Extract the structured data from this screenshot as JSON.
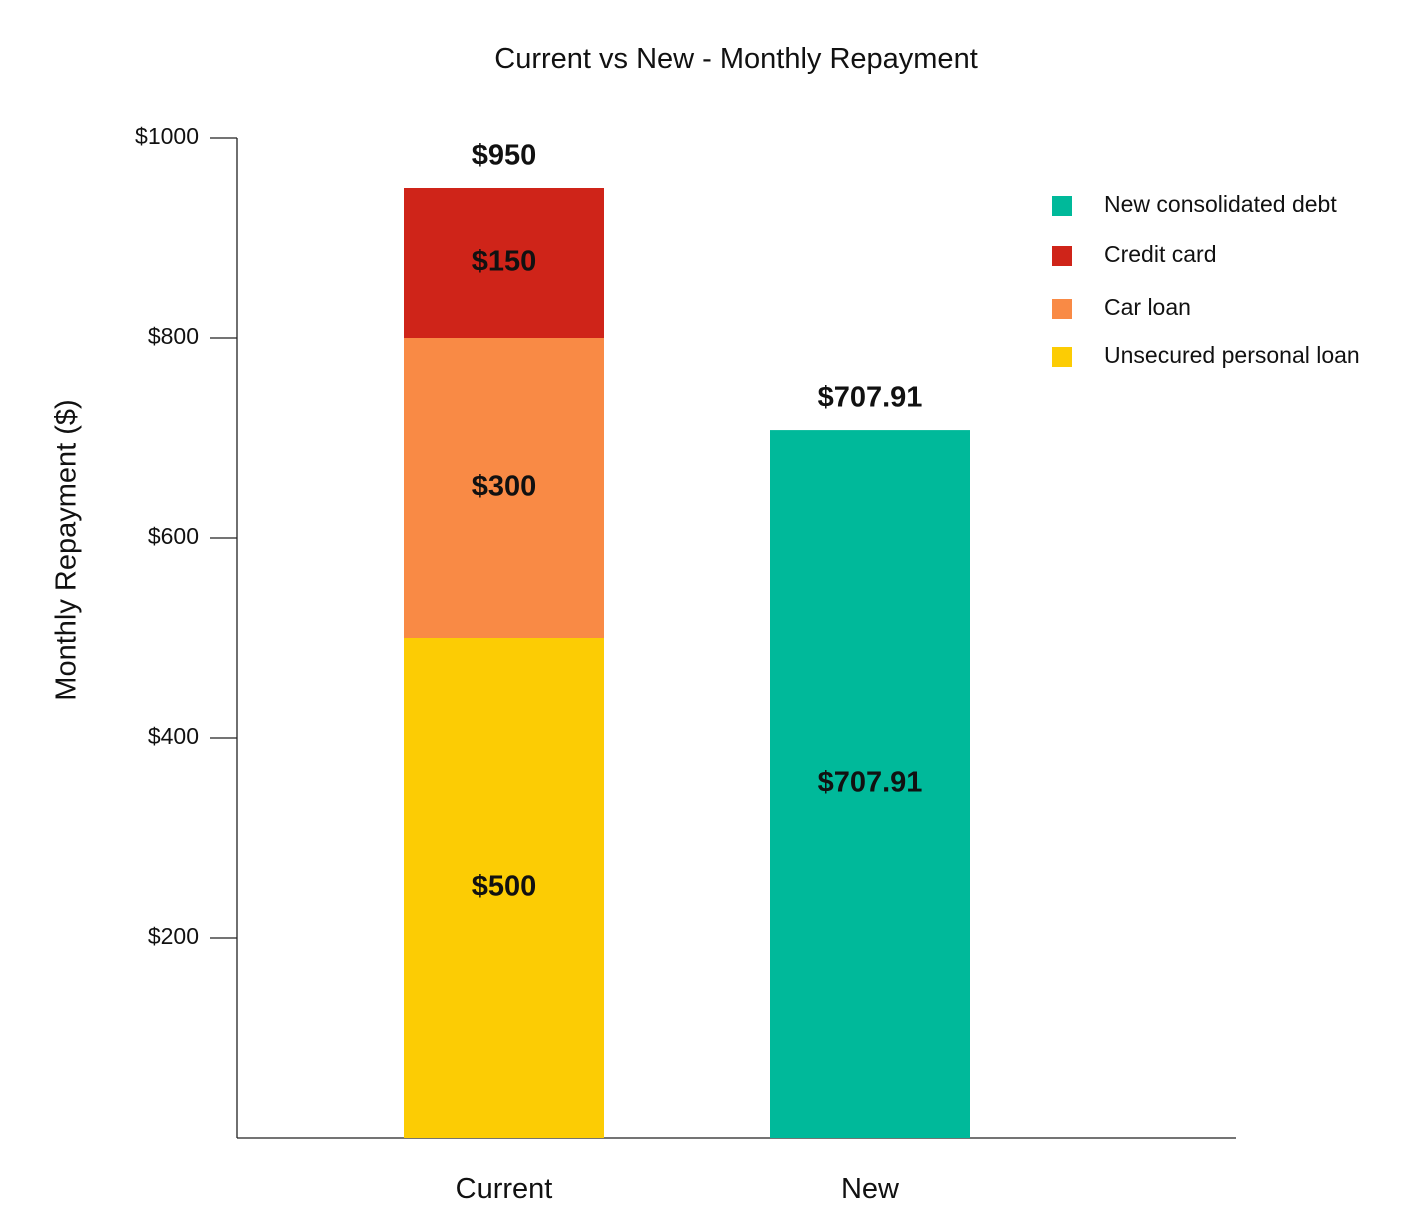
{
  "chart_data": {
    "type": "bar",
    "stacked": true,
    "title": "Current vs New - Monthly Repayment",
    "ylabel": "Monthly Repayment ($)",
    "xlabel": "",
    "ylim": [
      0,
      1000
    ],
    "yticks": [
      200,
      400,
      600,
      800,
      1000
    ],
    "ytick_labels": [
      "$200",
      "$400",
      "$600",
      "$800",
      "$1000"
    ],
    "categories": [
      "Current",
      "New"
    ],
    "series": [
      {
        "name": "Unsecured personal loan",
        "color": "#FCCC04",
        "values": [
          500,
          0
        ],
        "labels": [
          "$500",
          ""
        ]
      },
      {
        "name": "Car loan",
        "color": "#F98A45",
        "values": [
          300,
          0
        ],
        "labels": [
          "$300",
          ""
        ]
      },
      {
        "name": "Credit card",
        "color": "#CF2419",
        "values": [
          150,
          0
        ],
        "labels": [
          "$150",
          ""
        ]
      },
      {
        "name": "New consolidated debt",
        "color": "#00B99A",
        "values": [
          0,
          707.91
        ],
        "labels": [
          "",
          "$707.91"
        ]
      }
    ],
    "totals": [
      950,
      707.91
    ],
    "total_labels": [
      "$950",
      "$707.91"
    ],
    "legend_order": [
      "New consolidated debt",
      "Credit card",
      "Car loan",
      "Unsecured personal loan"
    ],
    "legend_position": "top-right",
    "grid": false
  }
}
